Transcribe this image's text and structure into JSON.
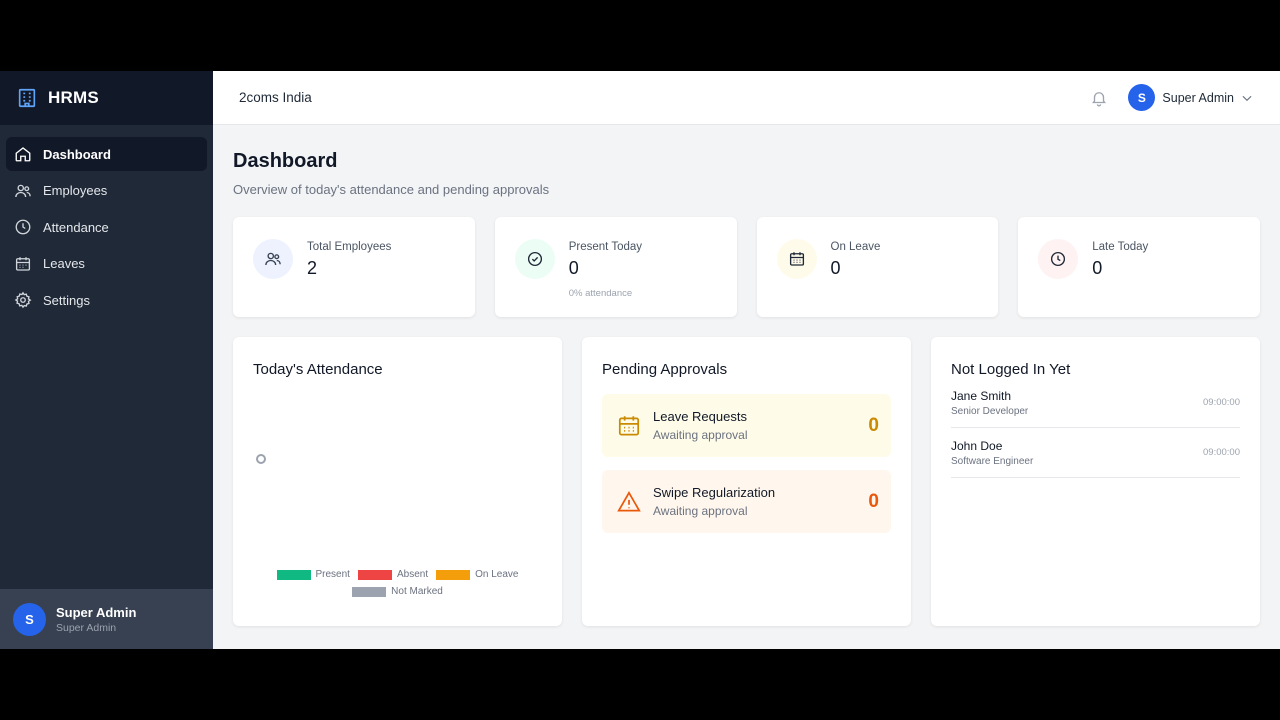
{
  "sidebar": {
    "brand": "HRMS",
    "items": [
      {
        "label": "Dashboard",
        "icon": "home-icon",
        "active": true
      },
      {
        "label": "Employees",
        "icon": "users-icon"
      },
      {
        "label": "Attendance",
        "icon": "clock-icon"
      },
      {
        "label": "Leaves",
        "icon": "calendar-icon"
      },
      {
        "label": "Settings",
        "icon": "gear-icon"
      }
    ],
    "user": {
      "initial": "S",
      "name": "Super Admin",
      "role": "Super Admin"
    }
  },
  "header": {
    "company": "2coms India",
    "user": {
      "initial": "S",
      "name": "Super Admin"
    }
  },
  "page": {
    "title": "Dashboard",
    "subtitle": "Overview of today's attendance and pending approvals"
  },
  "stats": [
    {
      "label": "Total Employees",
      "value": "2",
      "icon": "users-icon",
      "color": "#2563eb"
    },
    {
      "label": "Present Today",
      "value": "0",
      "note": "0% attendance",
      "icon": "check-circle-icon",
      "color": "#10b981"
    },
    {
      "label": "On Leave",
      "value": "0",
      "icon": "calendar-icon",
      "color": "#f59e0b"
    },
    {
      "label": "Late Today",
      "value": "0",
      "icon": "clock-icon",
      "color": "#ef4444"
    }
  ],
  "attendance": {
    "title": "Today's Attendance",
    "legend": [
      {
        "label": "Present",
        "color": "#10b981"
      },
      {
        "label": "Absent",
        "color": "#ef4444"
      },
      {
        "label": "On Leave",
        "color": "#f59e0b"
      },
      {
        "label": "Not Marked",
        "color": "#9ca3af"
      }
    ]
  },
  "approvals": {
    "title": "Pending Approvals",
    "items": [
      {
        "title": "Leave Requests",
        "subtitle": "Awaiting approval",
        "count": "0",
        "icon": "calendar-icon",
        "color": "#ca8a04",
        "bg": "#fefce8"
      },
      {
        "title": "Swipe Regularization",
        "subtitle": "Awaiting approval",
        "count": "0",
        "icon": "warning-icon",
        "color": "#ea580c",
        "bg": "#fff7ed"
      }
    ]
  },
  "not_logged": {
    "title": "Not Logged In Yet",
    "people": [
      {
        "name": "Jane Smith",
        "role": "Senior Developer",
        "time": "09:00:00"
      },
      {
        "name": "John Doe",
        "role": "Software Engineer",
        "time": "09:00:00"
      }
    ]
  }
}
